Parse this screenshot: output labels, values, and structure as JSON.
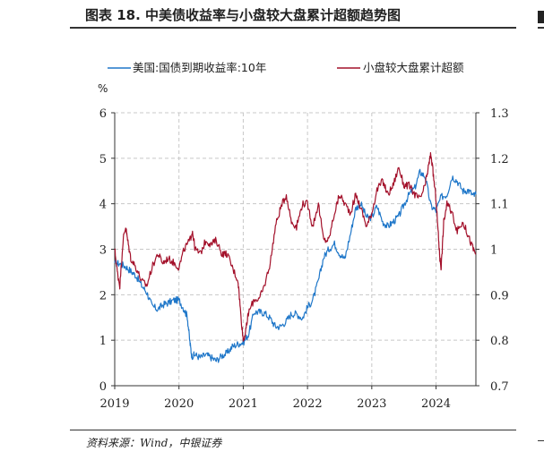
{
  "header": {
    "title": "图表 18. 中美债收益率与小盘较大盘累计超额趋势图"
  },
  "footer": {
    "source": "资料来源：Wind，中银证券"
  },
  "colors": {
    "us_yield": "#1f77c9",
    "small_cap_excess": "#a3102a",
    "grid": "#c8c8c8",
    "axis": "#333333"
  },
  "chart_data": {
    "type": "line",
    "title": "中美债收益率与小盘较大盘累计超额趋势图",
    "ylabel_left": "%",
    "ylabel_right": "",
    "xlim": [
      2019.0,
      2024.62
    ],
    "ylim_left": [
      0,
      6
    ],
    "ylim_right": [
      0.7,
      1.3
    ],
    "x_ticks": [
      2019,
      2020,
      2021,
      2022,
      2023,
      2024
    ],
    "x_tick_labels": [
      "2019",
      "2020",
      "2021",
      "2022",
      "2023",
      "2024"
    ],
    "y_left_ticks": [
      0,
      1,
      2,
      3,
      4,
      5,
      6
    ],
    "y_left_tick_labels": [
      "0",
      "1",
      "2",
      "3",
      "4",
      "5",
      "6"
    ],
    "y_right_ticks": [
      0.7,
      0.8,
      0.9,
      1.0,
      1.1,
      1.2,
      1.3
    ],
    "y_right_tick_labels": [
      "0.7",
      "0.8",
      "0.9",
      "1",
      "1.1",
      "1.2",
      "1.3"
    ],
    "grid": true,
    "legend_position": "top",
    "series": [
      {
        "name": "美国:国债到期收益率:10年",
        "axis": "left",
        "color": "#1f77c9",
        "x": [
          2019.0,
          2019.08,
          2019.17,
          2019.25,
          2019.33,
          2019.42,
          2019.5,
          2019.58,
          2019.67,
          2019.75,
          2019.83,
          2019.92,
          2020.0,
          2020.08,
          2020.13,
          2020.17,
          2020.2,
          2020.25,
          2020.33,
          2020.42,
          2020.5,
          2020.58,
          2020.67,
          2020.75,
          2020.83,
          2020.92,
          2021.0,
          2021.08,
          2021.17,
          2021.25,
          2021.33,
          2021.42,
          2021.5,
          2021.58,
          2021.67,
          2021.75,
          2021.83,
          2021.92,
          2022.0,
          2022.08,
          2022.17,
          2022.25,
          2022.33,
          2022.42,
          2022.5,
          2022.58,
          2022.67,
          2022.75,
          2022.83,
          2022.92,
          2023.0,
          2023.08,
          2023.17,
          2023.25,
          2023.33,
          2023.42,
          2023.5,
          2023.58,
          2023.67,
          2023.75,
          2023.83,
          2023.92,
          2024.0,
          2024.08,
          2024.17,
          2024.25,
          2024.33,
          2024.42,
          2024.5,
          2024.58,
          2024.62
        ],
        "values": [
          2.7,
          2.68,
          2.62,
          2.52,
          2.42,
          2.2,
          2.05,
          1.75,
          1.68,
          1.78,
          1.82,
          1.88,
          1.88,
          1.68,
          1.52,
          0.95,
          0.65,
          0.68,
          0.62,
          0.68,
          0.62,
          0.55,
          0.66,
          0.72,
          0.86,
          0.92,
          0.95,
          1.12,
          1.62,
          1.62,
          1.6,
          1.48,
          1.3,
          1.3,
          1.42,
          1.58,
          1.58,
          1.48,
          1.72,
          1.88,
          2.3,
          2.82,
          3.0,
          3.12,
          2.9,
          2.78,
          3.35,
          3.9,
          4.0,
          3.7,
          3.7,
          3.95,
          3.6,
          3.5,
          3.6,
          3.72,
          3.98,
          4.2,
          4.35,
          4.7,
          4.6,
          3.95,
          3.85,
          4.15,
          4.2,
          4.6,
          4.5,
          4.28,
          4.3,
          4.18,
          4.2
        ]
      },
      {
        "name": "小盘较大盘累计超额",
        "axis": "right",
        "color": "#a3102a",
        "x": [
          2019.0,
          2019.04,
          2019.08,
          2019.13,
          2019.17,
          2019.2,
          2019.25,
          2019.33,
          2019.42,
          2019.5,
          2019.58,
          2019.67,
          2019.75,
          2019.83,
          2019.92,
          2020.0,
          2020.08,
          2020.17,
          2020.21,
          2020.25,
          2020.33,
          2020.42,
          2020.5,
          2020.58,
          2020.67,
          2020.75,
          2020.83,
          2020.92,
          2020.96,
          2021.0,
          2021.04,
          2021.08,
          2021.17,
          2021.25,
          2021.33,
          2021.42,
          2021.5,
          2021.58,
          2021.67,
          2021.75,
          2021.83,
          2021.92,
          2022.0,
          2022.08,
          2022.17,
          2022.25,
          2022.33,
          2022.42,
          2022.5,
          2022.58,
          2022.67,
          2022.75,
          2022.83,
          2022.92,
          2023.0,
          2023.08,
          2023.17,
          2023.25,
          2023.33,
          2023.42,
          2023.5,
          2023.58,
          2023.67,
          2023.75,
          2023.83,
          2023.88,
          2023.92,
          2023.96,
          2024.0,
          2024.04,
          2024.06,
          2024.08,
          2024.12,
          2024.17,
          2024.25,
          2024.33,
          2024.42,
          2024.5,
          2024.58,
          2024.62
        ],
        "values": [
          1.0,
          0.95,
          0.92,
          1.02,
          1.05,
          1.02,
          0.98,
          0.96,
          0.93,
          0.92,
          0.96,
          0.99,
          0.97,
          0.98,
          0.97,
          0.96,
          1.0,
          1.02,
          1.04,
          1.0,
          0.99,
          1.02,
          1.01,
          1.02,
          0.99,
          0.99,
          0.96,
          0.93,
          0.86,
          0.8,
          0.82,
          0.86,
          0.89,
          0.89,
          0.92,
          0.97,
          1.05,
          1.09,
          1.12,
          1.06,
          1.05,
          1.1,
          1.1,
          1.05,
          1.1,
          1.02,
          1.02,
          1.08,
          1.12,
          1.1,
          1.08,
          1.12,
          1.09,
          1.05,
          1.08,
          1.13,
          1.15,
          1.12,
          1.14,
          1.18,
          1.14,
          1.14,
          1.12,
          1.11,
          1.14,
          1.18,
          1.21,
          1.16,
          1.11,
          1.02,
          0.98,
          0.96,
          1.06,
          1.1,
          1.08,
          1.04,
          1.06,
          1.03,
          1.0,
          0.99
        ]
      }
    ]
  }
}
